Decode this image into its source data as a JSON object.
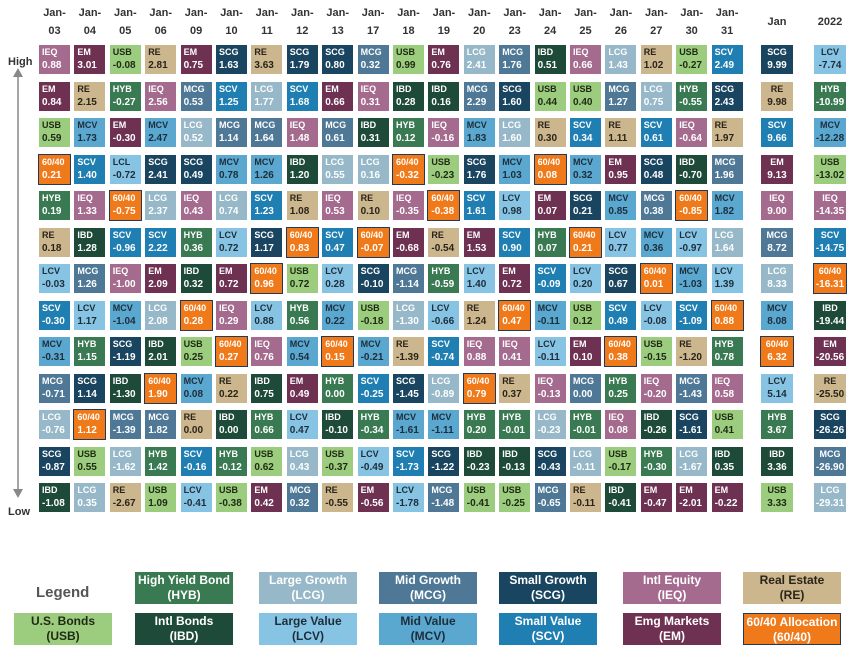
{
  "chart_data": {
    "type": "table",
    "columns": [
      [
        "Jan-",
        "03"
      ],
      [
        "Jan-",
        "04"
      ],
      [
        "Jan-",
        "05"
      ],
      [
        "Jan-",
        "06"
      ],
      [
        "Jan-",
        "09"
      ],
      [
        "Jan-",
        "10"
      ],
      [
        "Jan-",
        "11"
      ],
      [
        "Jan-",
        "12"
      ],
      [
        "Jan-",
        "13"
      ],
      [
        "Jan-",
        "17"
      ],
      [
        "Jan-",
        "18"
      ],
      [
        "Jan-",
        "19"
      ],
      [
        "Jan-",
        "20"
      ],
      [
        "Jan-",
        "23"
      ],
      [
        "Jan-",
        "24"
      ],
      [
        "Jan-",
        "25"
      ],
      [
        "Jan-",
        "26"
      ],
      [
        "Jan-",
        "27"
      ],
      [
        "Jan-",
        "30"
      ],
      [
        "Jan-",
        "31"
      ]
    ],
    "summary_columns": [
      "Jan",
      "2022"
    ],
    "row_labels": {
      "top": "High",
      "bottom": "Low"
    },
    "daily_ranks": [
      [
        [
          "IEQ",
          "0.88"
        ],
        [
          "EM",
          "0.84"
        ],
        [
          "USB",
          "0.59"
        ],
        [
          "60/40",
          "0.21"
        ],
        [
          "HYB",
          "0.19"
        ],
        [
          "RE",
          "0.18"
        ],
        [
          "LCV",
          "-0.03"
        ],
        [
          "SCV",
          "-0.30"
        ],
        [
          "MCV",
          "-0.31"
        ],
        [
          "MCG",
          "-0.71"
        ],
        [
          "LCG",
          "-0.76"
        ],
        [
          "SCG",
          "-0.87"
        ],
        [
          "IBD",
          "-1.08"
        ]
      ],
      [
        [
          "EM",
          "3.01"
        ],
        [
          "RE",
          "2.15"
        ],
        [
          "MCV",
          "1.73"
        ],
        [
          "SCV",
          "1.40"
        ],
        [
          "IEQ",
          "1.33"
        ],
        [
          "IBD",
          "1.28"
        ],
        [
          "MCG",
          "1.26"
        ],
        [
          "LCV",
          "1.17"
        ],
        [
          "HYB",
          "1.15"
        ],
        [
          "SCG",
          "1.14"
        ],
        [
          "60/40",
          "1.12"
        ],
        [
          "USB",
          "0.55"
        ],
        [
          "LCG",
          "0.35"
        ]
      ],
      [
        [
          "USB",
          "-0.08"
        ],
        [
          "HYB",
          "-0.27"
        ],
        [
          "EM",
          "-0.30"
        ],
        [
          "LCL",
          "-0.72"
        ],
        [
          "60/40",
          "-0.75"
        ],
        [
          "SCV",
          "-0.96"
        ],
        [
          "IEQ",
          "-1.00"
        ],
        [
          "MCV",
          "-1.04"
        ],
        [
          "SCG",
          "-1.19"
        ],
        [
          "IBD",
          "-1.30"
        ],
        [
          "MCG",
          "-1.39"
        ],
        [
          "LCG",
          "-1.62"
        ],
        [
          "RE",
          "-2.67"
        ]
      ],
      [
        [
          "RE",
          "2.81"
        ],
        [
          "IEQ",
          "2.56"
        ],
        [
          "MCV",
          "2.47"
        ],
        [
          "SCG",
          "2.41"
        ],
        [
          "LCG",
          "2.37"
        ],
        [
          "SCV",
          "2.22"
        ],
        [
          "EM",
          "2.09"
        ],
        [
          "LCG",
          "2.08"
        ],
        [
          "IBD",
          "2.01"
        ],
        [
          "60/40",
          "1.90"
        ],
        [
          "MCG",
          "1.82"
        ],
        [
          "HYB",
          "1.42"
        ],
        [
          "USB",
          "1.09"
        ]
      ],
      [
        [
          "EM",
          "0.75"
        ],
        [
          "MCG",
          "0.53"
        ],
        [
          "LCG",
          "0.52"
        ],
        [
          "SCG",
          "0.49"
        ],
        [
          "IEQ",
          "0.43"
        ],
        [
          "HYB",
          "0.36"
        ],
        [
          "IBD",
          "0.32"
        ],
        [
          "60/40",
          "0.28"
        ],
        [
          "USB",
          "0.25"
        ],
        [
          "MCV",
          "0.08"
        ],
        [
          "RE",
          "0.00"
        ],
        [
          "SCV",
          "-0.16"
        ],
        [
          "LCV",
          "-0.41"
        ]
      ],
      [
        [
          "SCG",
          "1.63"
        ],
        [
          "SCV",
          "1.25"
        ],
        [
          "MCG",
          "1.14"
        ],
        [
          "MCV",
          "0.78"
        ],
        [
          "LCG",
          "0.74"
        ],
        [
          "LCV",
          "0.72"
        ],
        [
          "EM",
          "0.72"
        ],
        [
          "IEQ",
          "0.29"
        ],
        [
          "60/40",
          "0.27"
        ],
        [
          "RE",
          "0.22"
        ],
        [
          "IBD",
          "0.00"
        ],
        [
          "HYB",
          "-0.12"
        ],
        [
          "USB",
          "-0.38"
        ]
      ],
      [
        [
          "RE",
          "3.63"
        ],
        [
          "LCG",
          "1.77"
        ],
        [
          "MCG",
          "1.64"
        ],
        [
          "MCV",
          "1.26"
        ],
        [
          "SCV",
          "1.23"
        ],
        [
          "SCG",
          "1.17"
        ],
        [
          "60/40",
          "0.96"
        ],
        [
          "LCV",
          "0.88"
        ],
        [
          "IEQ",
          "0.76"
        ],
        [
          "IBD",
          "0.75"
        ],
        [
          "HYB",
          "0.66"
        ],
        [
          "USB",
          "0.62"
        ],
        [
          "EM",
          "0.42"
        ]
      ],
      [
        [
          "SCG",
          "1.79"
        ],
        [
          "SCV",
          "1.68"
        ],
        [
          "IEQ",
          "1.48"
        ],
        [
          "IBD",
          "1.20"
        ],
        [
          "RE",
          "1.08"
        ],
        [
          "60/40",
          "0.83"
        ],
        [
          "USB",
          "0.72"
        ],
        [
          "HYB",
          "0.56"
        ],
        [
          "MCV",
          "0.54"
        ],
        [
          "EM",
          "0.49"
        ],
        [
          "LCV",
          "0.47"
        ],
        [
          "LCG",
          "0.43"
        ],
        [
          "MCG",
          "0.32"
        ]
      ],
      [
        [
          "SCG",
          "0.80"
        ],
        [
          "EM",
          "0.66"
        ],
        [
          "MCG",
          "0.61"
        ],
        [
          "LCG",
          "0.55"
        ],
        [
          "IEQ",
          "0.53"
        ],
        [
          "SCV",
          "0.47"
        ],
        [
          "LCV",
          "0.28"
        ],
        [
          "MCV",
          "0.22"
        ],
        [
          "60/40",
          "0.15"
        ],
        [
          "HYB",
          "0.00"
        ],
        [
          "IBD",
          "-0.10"
        ],
        [
          "USB",
          "-0.37"
        ],
        [
          "RE",
          "-0.55"
        ]
      ],
      [
        [
          "MCG",
          "0.32"
        ],
        [
          "IEQ",
          "0.31"
        ],
        [
          "IBD",
          "0.31"
        ],
        [
          "LCG",
          "0.16"
        ],
        [
          "RE",
          "0.10"
        ],
        [
          "60/40",
          "-0.07"
        ],
        [
          "SCG",
          "-0.10"
        ],
        [
          "USB",
          "-0.18"
        ],
        [
          "MCV",
          "-0.21"
        ],
        [
          "SCV",
          "-0.25"
        ],
        [
          "HYB",
          "-0.34"
        ],
        [
          "LCV",
          "-0.49"
        ],
        [
          "EM",
          "-0.56"
        ]
      ],
      [
        [
          "USB",
          "0.99"
        ],
        [
          "IBD",
          "0.28"
        ],
        [
          "HYB",
          "0.12"
        ],
        [
          "60/40",
          "-0.32"
        ],
        [
          "IEQ",
          "-0.35"
        ],
        [
          "EM",
          "-0.68"
        ],
        [
          "MCG",
          "-1.14"
        ],
        [
          "LCG",
          "-1.30"
        ],
        [
          "RE",
          "-1.39"
        ],
        [
          "SCG",
          "-1.45"
        ],
        [
          "MCV",
          "-1.61"
        ],
        [
          "SCV",
          "-1.73"
        ],
        [
          "LCV",
          "-1.78"
        ]
      ],
      [
        [
          "EM",
          "0.76"
        ],
        [
          "IBD",
          "0.16"
        ],
        [
          "IEQ",
          "-0.16"
        ],
        [
          "USB",
          "-0.23"
        ],
        [
          "60/40",
          "-0.38"
        ],
        [
          "RE",
          "-0.54"
        ],
        [
          "HYB",
          "-0.59"
        ],
        [
          "LCV",
          "-0.66"
        ],
        [
          "SCV",
          "-0.74"
        ],
        [
          "LCG",
          "-0.89"
        ],
        [
          "MCV",
          "-1.11"
        ],
        [
          "SCG",
          "-1.22"
        ],
        [
          "MCG",
          "-1.48"
        ]
      ],
      [
        [
          "LCG",
          "2.41"
        ],
        [
          "MCG",
          "2.29"
        ],
        [
          "MCV",
          "1.83"
        ],
        [
          "SCG",
          "1.76"
        ],
        [
          "SCV",
          "1.61"
        ],
        [
          "EM",
          "1.53"
        ],
        [
          "LCV",
          "1.40"
        ],
        [
          "RE",
          "1.24"
        ],
        [
          "IEQ",
          "0.88"
        ],
        [
          "60/40",
          "0.79"
        ],
        [
          "HYB",
          "0.20"
        ],
        [
          "IBD",
          "-0.23"
        ],
        [
          "USB",
          "-0.41"
        ]
      ],
      [
        [
          "MCG",
          "1.76"
        ],
        [
          "SCG",
          "1.60"
        ],
        [
          "LCG",
          "1.60"
        ],
        [
          "MCV",
          "1.03"
        ],
        [
          "LCV",
          "0.98"
        ],
        [
          "SCV",
          "0.90"
        ],
        [
          "EM",
          "0.72"
        ],
        [
          "60/40",
          "0.47"
        ],
        [
          "IEQ",
          "0.41"
        ],
        [
          "RE",
          "0.37"
        ],
        [
          "HYB",
          "-0.01"
        ],
        [
          "IBD",
          "-0.13"
        ],
        [
          "USB",
          "-0.25"
        ]
      ],
      [
        [
          "IBD",
          "0.51"
        ],
        [
          "USB",
          "0.44"
        ],
        [
          "RE",
          "0.30"
        ],
        [
          "60/40",
          "0.08"
        ],
        [
          "EM",
          "0.07"
        ],
        [
          "HYB",
          "0.07"
        ],
        [
          "SCV",
          "-0.09"
        ],
        [
          "MCV",
          "-0.11"
        ],
        [
          "LCV",
          "-0.11"
        ],
        [
          "IEQ",
          "-0.13"
        ],
        [
          "LCG",
          "-0.23"
        ],
        [
          "SCG",
          "-0.43"
        ],
        [
          "MCG",
          "-0.65"
        ]
      ],
      [
        [
          "IEQ",
          "0.66"
        ],
        [
          "USB",
          "0.40"
        ],
        [
          "SCV",
          "0.34"
        ],
        [
          "MCV",
          "0.32"
        ],
        [
          "SCG",
          "0.21"
        ],
        [
          "60/40",
          "0.21"
        ],
        [
          "LCV",
          "0.20"
        ],
        [
          "USB",
          "0.12"
        ],
        [
          "EM",
          "0.10"
        ],
        [
          "MCG",
          "0.00"
        ],
        [
          "HYB",
          "-0.01"
        ],
        [
          "LCG",
          "-0.11"
        ],
        [
          "RE",
          "-0.11"
        ]
      ],
      [
        [
          "LCG",
          "1.43"
        ],
        [
          "MCG",
          "1.27"
        ],
        [
          "RE",
          "1.11"
        ],
        [
          "EM",
          "0.95"
        ],
        [
          "MCV",
          "0.85"
        ],
        [
          "LCV",
          "0.77"
        ],
        [
          "SCG",
          "0.67"
        ],
        [
          "SCV",
          "0.49"
        ],
        [
          "60/40",
          "0.38"
        ],
        [
          "HYB",
          "0.25"
        ],
        [
          "IEQ",
          "0.08"
        ],
        [
          "USB",
          "-0.17"
        ],
        [
          "IBD",
          "-0.41"
        ]
      ],
      [
        [
          "RE",
          "1.02"
        ],
        [
          "LCG",
          "0.75"
        ],
        [
          "SCV",
          "0.61"
        ],
        [
          "SCG",
          "0.48"
        ],
        [
          "MCG",
          "0.38"
        ],
        [
          "MCV",
          "0.36"
        ],
        [
          "60/40",
          "0.01"
        ],
        [
          "LCV",
          "-0.08"
        ],
        [
          "USB",
          "-0.15"
        ],
        [
          "IEQ",
          "-0.20"
        ],
        [
          "IBD",
          "-0.26"
        ],
        [
          "HYB",
          "-0.30"
        ],
        [
          "EM",
          "-0.47"
        ]
      ],
      [
        [
          "USB",
          "-0.27"
        ],
        [
          "HYB",
          "-0.55"
        ],
        [
          "IEQ",
          "-0.64"
        ],
        [
          "IBD",
          "-0.70"
        ],
        [
          "60/40",
          "-0.85"
        ],
        [
          "LCV",
          "-0.97"
        ],
        [
          "MCV",
          "-1.03"
        ],
        [
          "SCV",
          "-1.09"
        ],
        [
          "RE",
          "-1.20"
        ],
        [
          "MCG",
          "-1.43"
        ],
        [
          "SCG",
          "-1.61"
        ],
        [
          "LCG",
          "-1.67"
        ],
        [
          "EM",
          "-2.01"
        ]
      ],
      [
        [
          "SCV",
          "2.49"
        ],
        [
          "SCG",
          "2.43"
        ],
        [
          "RE",
          "1.97"
        ],
        [
          "MCG",
          "1.96"
        ],
        [
          "MCV",
          "1.82"
        ],
        [
          "LCG",
          "1.64"
        ],
        [
          "LCV",
          "1.39"
        ],
        [
          "60/40",
          "0.88"
        ],
        [
          "HYB",
          "0.78"
        ],
        [
          "IEQ",
          "0.58"
        ],
        [
          "USB",
          "0.41"
        ],
        [
          "IBD",
          "0.35"
        ],
        [
          "EM",
          "-0.22"
        ]
      ]
    ],
    "jan_ranks": [
      [
        "SCG",
        "9.99"
      ],
      [
        "RE",
        "9.98"
      ],
      [
        "SCV",
        "9.66"
      ],
      [
        "EM",
        "9.13"
      ],
      [
        "IEQ",
        "9.00"
      ],
      [
        "MCG",
        "8.72"
      ],
      [
        "LCG",
        "8.33"
      ],
      [
        "MCV",
        "8.08"
      ],
      [
        "60/40",
        "6.32"
      ],
      [
        "LCV",
        "5.14"
      ],
      [
        "HYB",
        "3.67"
      ],
      [
        "IBD",
        "3.36"
      ],
      [
        "USB",
        "3.33"
      ]
    ],
    "year_2022_ranks": [
      [
        "LCV",
        "-7.74"
      ],
      [
        "HYB",
        "-10.99"
      ],
      [
        "MCV",
        "-12.28"
      ],
      [
        "USB",
        "-13.02"
      ],
      [
        "IEQ",
        "-14.35"
      ],
      [
        "SCV",
        "-14.75"
      ],
      [
        "60/40",
        "-16.31"
      ],
      [
        "IBD",
        "-19.44"
      ],
      [
        "EM",
        "-20.56"
      ],
      [
        "RE",
        "-25.50"
      ],
      [
        "SCG",
        "-26.26"
      ],
      [
        "MCG",
        "-26.90"
      ],
      [
        "LCG",
        "-29.31"
      ]
    ]
  },
  "asset_classes": {
    "USB": {
      "name": "U.S. Bonds",
      "fill": "#9ccc7e",
      "text": "#1e2a14"
    },
    "HYB": {
      "name": "High Yield Bond",
      "fill": "#3a7a52",
      "text": "#ffffff"
    },
    "IBD": {
      "name": "Intl Bonds",
      "fill": "#1e4a3a",
      "text": "#ffffff"
    },
    "LCG": {
      "name": "Large Growth",
      "fill": "#96b8c8",
      "text": "#ffffff"
    },
    "LCV": {
      "name": "Large Value",
      "fill": "#87c4e4",
      "text": "#1e2d3a"
    },
    "MCG": {
      "name": "Mid Growth",
      "fill": "#4e7896",
      "text": "#ffffff"
    },
    "MCV": {
      "name": "Mid Value",
      "fill": "#5aa8d0",
      "text": "#1e2d3a"
    },
    "SCG": {
      "name": "Small Growth",
      "fill": "#1a4560",
      "text": "#ffffff"
    },
    "SCV": {
      "name": "Small Value",
      "fill": "#1f7fb2",
      "text": "#ffffff"
    },
    "IEQ": {
      "name": "Intl Equity",
      "fill": "#a56b8e",
      "text": "#ffffff"
    },
    "EM": {
      "name": "Emg Markets",
      "fill": "#6e3152",
      "text": "#ffffff"
    },
    "RE": {
      "name": "Real Estate",
      "fill": "#cbb68e",
      "text": "#2a2418"
    },
    "60/40": {
      "name": "60/40 Allocation",
      "fill": "#f07a1a",
      "text": "#ffffff"
    }
  },
  "legend": {
    "title": "Legend",
    "items": [
      [
        "High Yield Bond",
        "(HYB)",
        "HYB"
      ],
      [
        "Large Growth",
        "(LCG)",
        "LCG"
      ],
      [
        "Mid Growth",
        "(MCG)",
        "MCG"
      ],
      [
        "Small Growth",
        "(SCG)",
        "SCG"
      ],
      [
        "Intl Equity",
        "(IEQ)",
        "IEQ"
      ],
      [
        "Real Estate",
        "(RE)",
        "RE"
      ],
      [
        "U.S. Bonds",
        "(USB)",
        "USB"
      ],
      [
        "Intl Bonds",
        "(IBD)",
        "IBD"
      ],
      [
        "Large Value",
        "(LCV)",
        "LCV"
      ],
      [
        "Mid Value",
        "(MCV)",
        "MCV"
      ],
      [
        "Small Value",
        "(SCV)",
        "SCV"
      ],
      [
        "Emg Markets",
        "(EM)",
        "EM"
      ],
      [
        "60/40 Allocation",
        "(60/40)",
        "60/40"
      ]
    ]
  },
  "highlight_border": "#1f3a5a"
}
